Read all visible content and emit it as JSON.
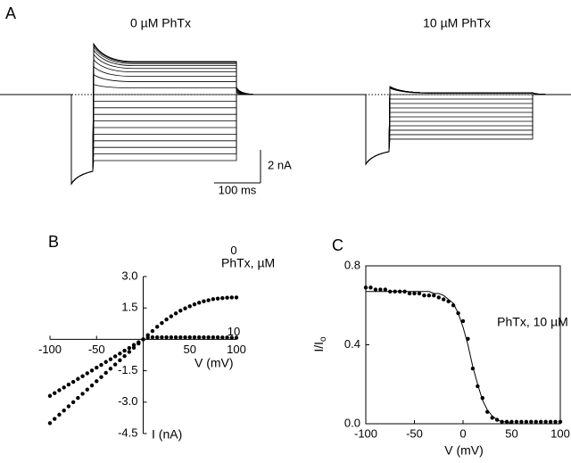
{
  "panel_a": {
    "label": "A",
    "conditions": [
      "0 µM PhTx",
      "10 µM PhTx"
    ],
    "scale_bar": {
      "current": "2 nA",
      "time": "100 ms"
    }
  },
  "panel_b": {
    "label": "B",
    "type": "scatter",
    "x_label": "V (mV)",
    "y_label": "I (nA)",
    "legend_title": "PhTx, µM",
    "xlim": [
      -100,
      100
    ],
    "ylim": [
      -4.5,
      3.0
    ],
    "xticks": [
      -100,
      -50,
      50,
      100
    ],
    "yticks": [
      {
        "value": 3,
        "label": "3.0"
      },
      {
        "value": 1.5,
        "label": "1.5"
      },
      {
        "value": -1.5,
        "label": "-1.5"
      },
      {
        "value": -3,
        "label": "-3.0"
      },
      {
        "value": -4.5,
        "label": "-4.5"
      }
    ],
    "x": [
      -100,
      -95,
      -90,
      -85,
      -80,
      -75,
      -70,
      -65,
      -60,
      -55,
      -50,
      -45,
      -40,
      -35,
      -30,
      -25,
      -20,
      -15,
      -10,
      -5,
      0,
      5,
      10,
      15,
      20,
      25,
      30,
      35,
      40,
      45,
      50,
      55,
      60,
      65,
      70,
      75,
      80,
      85,
      90,
      95,
      100
    ],
    "series": [
      {
        "name": "0",
        "color": "#000000",
        "values": [
          -4,
          -3.8,
          -3.6,
          -3.4,
          -3.2,
          -3,
          -2.8,
          -2.6,
          -2.4,
          -2.2,
          -2,
          -1.8,
          -1.6,
          -1.4,
          -1.2,
          -1,
          -0.8,
          -0.6,
          -0.4,
          -0.2,
          0,
          0.2,
          0.4,
          0.6,
          0.78,
          0.95,
          1.1,
          1.24,
          1.37,
          1.48,
          1.58,
          1.67,
          1.75,
          1.82,
          1.87,
          1.92,
          1.95,
          1.97,
          1.99,
          2,
          2
        ]
      },
      {
        "name": "10",
        "color": "#000000",
        "values": [
          -2.7,
          -2.57,
          -2.43,
          -2.3,
          -2.16,
          -2.03,
          -1.89,
          -1.76,
          -1.62,
          -1.49,
          -1.35,
          -1.22,
          -1.08,
          -0.95,
          -0.81,
          -0.68,
          -0.54,
          -0.41,
          -0.27,
          -0.14,
          0,
          0.08,
          0.1,
          0.1,
          0.1,
          0.1,
          0.1,
          0.1,
          0.1,
          0.1,
          0.1,
          0.1,
          0.1,
          0.1,
          0.1,
          0.1,
          0.1,
          0.09,
          0.09,
          0.08,
          0.08
        ]
      }
    ]
  },
  "panel_c": {
    "label": "C",
    "type": "scatter",
    "x_label": "V (mV)",
    "y_label": "I/I",
    "y_label_sub": "o",
    "annotation": "PhTx, 10 µM",
    "xlim": [
      -100,
      100
    ],
    "ylim": [
      0,
      0.8
    ],
    "xticks": [
      -100,
      -50,
      0,
      50,
      100
    ],
    "yticks": [
      {
        "value": 0,
        "label": "0.0"
      },
      {
        "value": 0.4,
        "label": "0.4"
      },
      0.8
    ],
    "x": [
      -100,
      -95,
      -90,
      -85,
      -80,
      -75,
      -70,
      -65,
      -60,
      -55,
      -50,
      -45,
      -40,
      -35,
      -30,
      -25,
      -20,
      -15,
      -10,
      -5,
      0,
      5,
      10,
      15,
      20,
      25,
      30,
      35,
      40,
      45,
      50,
      55,
      60,
      65,
      70,
      75,
      80,
      85,
      90,
      95,
      100
    ],
    "values": [
      0.69,
      0.69,
      0.68,
      0.68,
      0.68,
      0.67,
      0.67,
      0.67,
      0.67,
      0.66,
      0.66,
      0.66,
      0.65,
      0.65,
      0.65,
      0.64,
      0.63,
      0.62,
      0.6,
      0.56,
      0.52,
      0.43,
      0.28,
      0.19,
      0.13,
      0.06,
      0.03,
      0.02,
      0.01,
      0.01,
      0.01,
      0.01,
      0.01,
      0.01,
      0.01,
      0.01,
      0.01,
      0.01,
      0.01,
      0.01,
      0.01
    ],
    "fit": [
      0.67,
      0.67,
      0.67,
      0.67,
      0.67,
      0.67,
      0.67,
      0.67,
      0.67,
      0.67,
      0.67,
      0.67,
      0.67,
      0.67,
      0.66,
      0.66,
      0.65,
      0.63,
      0.61,
      0.56,
      0.49,
      0.4,
      0.29,
      0.2,
      0.12,
      0.07,
      0.04,
      0.02,
      0.01,
      0.01,
      0,
      0,
      0,
      0,
      0,
      0,
      0,
      0,
      0,
      0,
      0
    ]
  }
}
